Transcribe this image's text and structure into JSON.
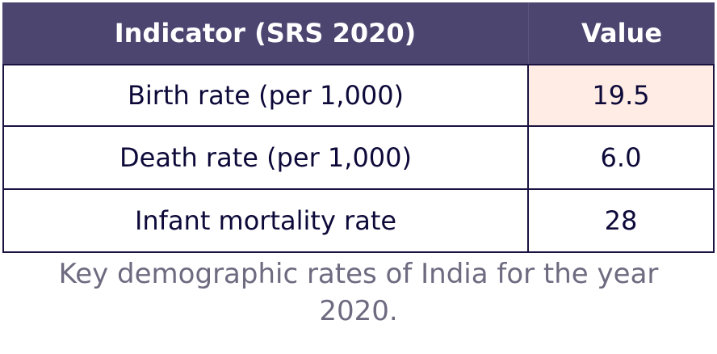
{
  "table": {
    "header": [
      "Indicator (SRS 2020)",
      "Value"
    ],
    "rows": [
      [
        "Birth rate (per 1,000)",
        "19.5"
      ],
      [
        "Death rate (per 1,000)",
        "6.0"
      ],
      [
        "Infant mortality rate",
        "28"
      ]
    ]
  },
  "caption": "Key demographic rates of India for the year 2020."
}
